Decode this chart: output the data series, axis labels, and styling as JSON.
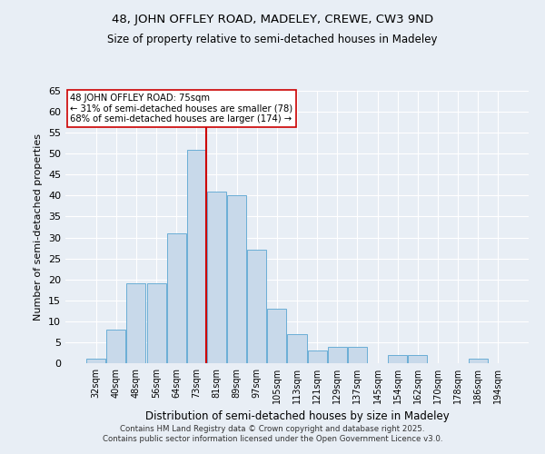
{
  "title1": "48, JOHN OFFLEY ROAD, MADELEY, CREWE, CW3 9ND",
  "title2": "Size of property relative to semi-detached houses in Madeley",
  "xlabel": "Distribution of semi-detached houses by size in Madeley",
  "ylabel": "Number of semi-detached properties",
  "categories": [
    "32sqm",
    "40sqm",
    "48sqm",
    "56sqm",
    "64sqm",
    "73sqm",
    "81sqm",
    "89sqm",
    "97sqm",
    "105sqm",
    "113sqm",
    "121sqm",
    "129sqm",
    "137sqm",
    "145sqm",
    "154sqm",
    "162sqm",
    "170sqm",
    "178sqm",
    "186sqm",
    "194sqm"
  ],
  "values": [
    1,
    8,
    19,
    19,
    31,
    51,
    41,
    40,
    27,
    13,
    7,
    3,
    4,
    4,
    0,
    2,
    2,
    0,
    0,
    1,
    0
  ],
  "bar_color": "#c8d9ea",
  "bar_edge_color": "#6aaed6",
  "property_bin_index": 5,
  "annotation_title": "48 JOHN OFFLEY ROAD: 75sqm",
  "annotation_line1": "← 31% of semi-detached houses are smaller (78)",
  "annotation_line2": "68% of semi-detached houses are larger (174) →",
  "vline_color": "#cc0000",
  "ylim": [
    0,
    65
  ],
  "yticks": [
    0,
    5,
    10,
    15,
    20,
    25,
    30,
    35,
    40,
    45,
    50,
    55,
    60,
    65
  ],
  "background_color": "#e8eef5",
  "grid_color": "#ffffff",
  "footer1": "Contains HM Land Registry data © Crown copyright and database right 2025.",
  "footer2": "Contains public sector information licensed under the Open Government Licence v3.0."
}
